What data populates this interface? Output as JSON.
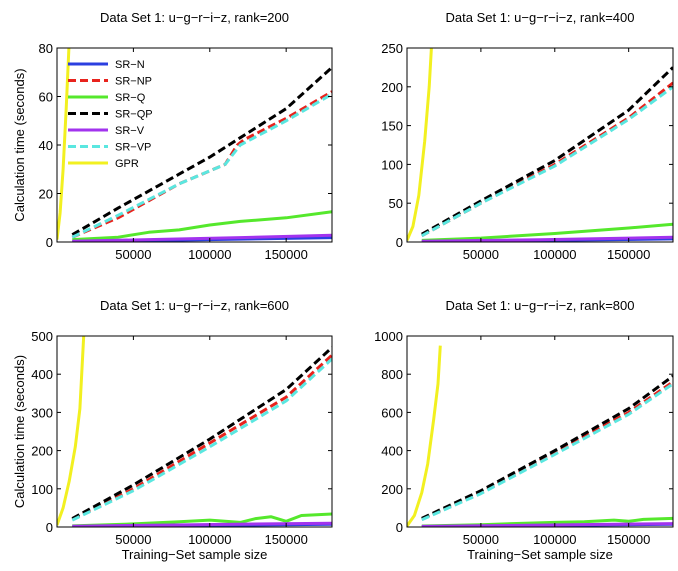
{
  "chart_data": [
    {
      "type": "line",
      "title": "Data Set 1: u−g−r−i−z, rank=200",
      "xlabel": "",
      "ylabel": "Calculation time (seconds)",
      "xlim": [
        0,
        180000
      ],
      "ylim": [
        0,
        80
      ],
      "xticks": [
        50000,
        100000,
        150000
      ],
      "yticks": [
        0,
        20,
        40,
        60,
        80
      ],
      "xtick_labels": [
        "50000",
        "100000",
        "150000"
      ],
      "ytick_labels": [
        "0",
        "20",
        "40",
        "60",
        "80"
      ],
      "legend": "top-left",
      "series": [
        {
          "name": "SR−N",
          "color": "#2b3fe0",
          "dash": "solid",
          "points": [
            [
              10000,
              0.2
            ],
            [
              60000,
              0.6
            ],
            [
              120000,
              1.2
            ],
            [
              180000,
              1.8
            ]
          ]
        },
        {
          "name": "SR−NP",
          "color": "#e8231d",
          "dash": "dashed",
          "points": [
            [
              10000,
              2
            ],
            [
              40000,
              10
            ],
            [
              80000,
              24
            ],
            [
              110000,
              32
            ],
            [
              118000,
              40
            ],
            [
              122000,
              42
            ],
            [
              150000,
              51
            ],
            [
              180000,
              62
            ]
          ]
        },
        {
          "name": "SR−Q",
          "color": "#55e82c",
          "dash": "solid",
          "points": [
            [
              10000,
              1
            ],
            [
              40000,
              2
            ],
            [
              60000,
              4
            ],
            [
              80000,
              5
            ],
            [
              100000,
              7
            ],
            [
              120000,
              8.5
            ],
            [
              150000,
              10
            ],
            [
              180000,
              12.5
            ]
          ]
        },
        {
          "name": "SR−QP",
          "color": "#000000",
          "dash": "dashed",
          "points": [
            [
              10000,
              3
            ],
            [
              40000,
              14
            ],
            [
              80000,
              28
            ],
            [
              100000,
              35
            ],
            [
              120000,
              43
            ],
            [
              150000,
              55
            ],
            [
              180000,
              72
            ]
          ]
        },
        {
          "name": "SR−V",
          "color": "#a233ee",
          "dash": "solid",
          "points": [
            [
              10000,
              0.3
            ],
            [
              60000,
              1
            ],
            [
              120000,
              1.8
            ],
            [
              180000,
              2.8
            ]
          ]
        },
        {
          "name": "SR−VP",
          "color": "#5ae7e0",
          "dash": "dashed",
          "points": [
            [
              10000,
              2
            ],
            [
              40000,
              11
            ],
            [
              80000,
              24
            ],
            [
              110000,
              32
            ],
            [
              120000,
              40
            ],
            [
              150000,
              50
            ],
            [
              180000,
              61
            ]
          ]
        },
        {
          "name": "GPR",
          "color": "#f2f020",
          "dash": "solid",
          "points": [
            [
              0,
              1
            ],
            [
              2000,
              12
            ],
            [
              4000,
              30
            ],
            [
              6000,
              55
            ],
            [
              7800,
              80
            ]
          ]
        }
      ]
    },
    {
      "type": "line",
      "title": "Data Set 1: u−g−r−i−z, rank=400",
      "xlabel": "",
      "ylabel": "",
      "xlim": [
        0,
        180000
      ],
      "ylim": [
        0,
        250
      ],
      "xticks": [
        50000,
        100000,
        150000
      ],
      "yticks": [
        0,
        50,
        100,
        150,
        200,
        250
      ],
      "xtick_labels": [
        "50000",
        "100000",
        "150000"
      ],
      "ytick_labels": [
        "0",
        "50",
        "100",
        "150",
        "200",
        "250"
      ],
      "series": [
        {
          "name": "SR−N",
          "color": "#2b3fe0",
          "dash": "solid",
          "points": [
            [
              10000,
              0.5
            ],
            [
              90000,
              2
            ],
            [
              180000,
              4
            ]
          ]
        },
        {
          "name": "SR−NP",
          "color": "#e8231d",
          "dash": "dashed",
          "points": [
            [
              10000,
              8
            ],
            [
              50000,
              50
            ],
            [
              100000,
              100
            ],
            [
              150000,
              160
            ],
            [
              180000,
              205
            ]
          ]
        },
        {
          "name": "SR−Q",
          "color": "#55e82c",
          "dash": "solid",
          "points": [
            [
              10000,
              2
            ],
            [
              50000,
              5
            ],
            [
              100000,
              11
            ],
            [
              150000,
              18
            ],
            [
              180000,
              23
            ]
          ]
        },
        {
          "name": "SR−QP",
          "color": "#000000",
          "dash": "dashed",
          "points": [
            [
              10000,
              10
            ],
            [
              50000,
              53
            ],
            [
              100000,
              105
            ],
            [
              150000,
              170
            ],
            [
              180000,
              225
            ]
          ]
        },
        {
          "name": "SR−V",
          "color": "#a233ee",
          "dash": "solid",
          "points": [
            [
              10000,
              1
            ],
            [
              90000,
              3
            ],
            [
              180000,
              6
            ]
          ]
        },
        {
          "name": "SR−VP",
          "color": "#5ae7e0",
          "dash": "dashed",
          "points": [
            [
              10000,
              8
            ],
            [
              50000,
              50
            ],
            [
              100000,
              98
            ],
            [
              150000,
              158
            ],
            [
              180000,
              200
            ]
          ]
        },
        {
          "name": "GPR",
          "color": "#f2f020",
          "dash": "solid",
          "points": [
            [
              0,
              2
            ],
            [
              4000,
              20
            ],
            [
              8000,
              60
            ],
            [
              12000,
              130
            ],
            [
              15000,
              200
            ],
            [
              16500,
              250
            ]
          ]
        }
      ]
    },
    {
      "type": "line",
      "title": "Data Set 1: u−g−r−i−z, rank=600",
      "xlabel": "Training−Set sample size",
      "ylabel": "Calculation time (seconds)",
      "xlim": [
        0,
        180000
      ],
      "ylim": [
        0,
        500
      ],
      "xticks": [
        50000,
        100000,
        150000
      ],
      "yticks": [
        0,
        100,
        200,
        300,
        400,
        500
      ],
      "xtick_labels": [
        "50000",
        "100000",
        "150000"
      ],
      "ytick_labels": [
        "0",
        "100",
        "200",
        "300",
        "400",
        "500"
      ],
      "series": [
        {
          "name": "SR−N",
          "color": "#2b3fe0",
          "dash": "solid",
          "points": [
            [
              10000,
              1
            ],
            [
              90000,
              4
            ],
            [
              180000,
              7
            ]
          ]
        },
        {
          "name": "SR−NP",
          "color": "#e8231d",
          "dash": "dashed",
          "points": [
            [
              10000,
              20
            ],
            [
              50000,
              100
            ],
            [
              100000,
              220
            ],
            [
              150000,
              340
            ],
            [
              180000,
              450
            ]
          ]
        },
        {
          "name": "SR−Q",
          "color": "#55e82c",
          "dash": "solid",
          "points": [
            [
              10000,
              3
            ],
            [
              50000,
              8
            ],
            [
              80000,
              14
            ],
            [
              100000,
              18
            ],
            [
              120000,
              12
            ],
            [
              130000,
              22
            ],
            [
              140000,
              27
            ],
            [
              150000,
              15
            ],
            [
              160000,
              30
            ],
            [
              180000,
              34
            ]
          ]
        },
        {
          "name": "SR−QP",
          "color": "#000000",
          "dash": "dashed",
          "points": [
            [
              10000,
              22
            ],
            [
              50000,
              110
            ],
            [
              100000,
              230
            ],
            [
              150000,
              360
            ],
            [
              180000,
              470
            ]
          ]
        },
        {
          "name": "SR−V",
          "color": "#a233ee",
          "dash": "solid",
          "points": [
            [
              10000,
              2
            ],
            [
              90000,
              6
            ],
            [
              180000,
              10
            ]
          ]
        },
        {
          "name": "SR−VP",
          "color": "#5ae7e0",
          "dash": "dashed",
          "points": [
            [
              10000,
              18
            ],
            [
              50000,
              95
            ],
            [
              100000,
              210
            ],
            [
              150000,
              330
            ],
            [
              180000,
              440
            ]
          ]
        },
        {
          "name": "GPR",
          "color": "#f2f020",
          "dash": "solid",
          "points": [
            [
              0,
              5
            ],
            [
              4000,
              50
            ],
            [
              8000,
              120
            ],
            [
              12000,
              210
            ],
            [
              15000,
              310
            ],
            [
              17500,
              500
            ]
          ]
        }
      ]
    },
    {
      "type": "line",
      "title": "Data Set 1: u−g−r−i−z, rank=800",
      "xlabel": "Training−Set sample size",
      "ylabel": "",
      "xlim": [
        0,
        180000
      ],
      "ylim": [
        0,
        1000
      ],
      "xticks": [
        50000,
        100000,
        150000
      ],
      "yticks": [
        0,
        200,
        400,
        600,
        800,
        1000
      ],
      "xtick_labels": [
        "50000",
        "100000",
        "150000"
      ],
      "ytick_labels": [
        "0",
        "200",
        "400",
        "600",
        "800",
        "1000"
      ],
      "series": [
        {
          "name": "SR−N",
          "color": "#2b3fe0",
          "dash": "solid",
          "points": [
            [
              10000,
              2
            ],
            [
              90000,
              8
            ],
            [
              180000,
              14
            ]
          ]
        },
        {
          "name": "SR−NP",
          "color": "#e8231d",
          "dash": "dashed",
          "points": [
            [
              10000,
              40
            ],
            [
              50000,
              180
            ],
            [
              100000,
              390
            ],
            [
              150000,
              600
            ],
            [
              180000,
              760
            ]
          ]
        },
        {
          "name": "SR−Q",
          "color": "#55e82c",
          "dash": "solid",
          "points": [
            [
              10000,
              5
            ],
            [
              50000,
              12
            ],
            [
              80000,
              20
            ],
            [
              100000,
              24
            ],
            [
              120000,
              28
            ],
            [
              140000,
              36
            ],
            [
              150000,
              30
            ],
            [
              160000,
              40
            ],
            [
              180000,
              45
            ]
          ]
        },
        {
          "name": "SR−QP",
          "color": "#000000",
          "dash": "dashed",
          "points": [
            [
              10000,
              45
            ],
            [
              50000,
              190
            ],
            [
              100000,
              400
            ],
            [
              150000,
              620
            ],
            [
              180000,
              790
            ]
          ]
        },
        {
          "name": "SR−V",
          "color": "#a233ee",
          "dash": "solid",
          "points": [
            [
              10000,
              3
            ],
            [
              90000,
              10
            ],
            [
              180000,
              18
            ]
          ]
        },
        {
          "name": "SR−VP",
          "color": "#5ae7e0",
          "dash": "dashed",
          "points": [
            [
              10000,
              38
            ],
            [
              50000,
              175
            ],
            [
              100000,
              380
            ],
            [
              150000,
              590
            ],
            [
              180000,
              750
            ]
          ]
        },
        {
          "name": "GPR",
          "color": "#f2f020",
          "dash": "solid",
          "points": [
            [
              0,
              5
            ],
            [
              5000,
              60
            ],
            [
              10000,
              180
            ],
            [
              14000,
              330
            ],
            [
              18000,
              560
            ],
            [
              21000,
              750
            ],
            [
              22500,
              950
            ]
          ]
        }
      ]
    }
  ]
}
